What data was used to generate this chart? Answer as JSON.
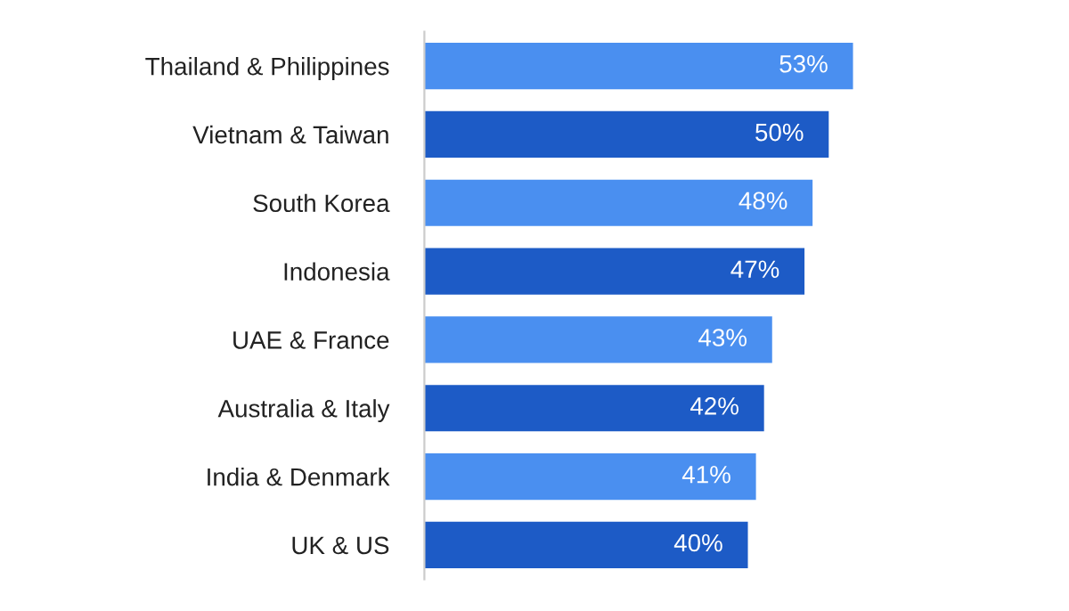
{
  "chart_data": {
    "type": "bar",
    "orientation": "horizontal",
    "categories": [
      "Thailand & Philippines",
      "Vietnam & Taiwan",
      "South Korea",
      "Indonesia",
      "UAE & France",
      "Australia & Italy",
      "India & Denmark",
      "UK & US"
    ],
    "values": [
      53,
      50,
      48,
      47,
      43,
      42,
      41,
      40
    ],
    "value_labels": [
      "53%",
      "50%",
      "48%",
      "47%",
      "43%",
      "42%",
      "41%",
      "40%"
    ],
    "colors": [
      "#4a8ff0",
      "#1d5bc6",
      "#4a8ff0",
      "#1d5bc6",
      "#4a8ff0",
      "#1d5bc6",
      "#4a8ff0",
      "#1d5bc6"
    ],
    "tick_labels": "y",
    "grid": false,
    "legend": false
  }
}
